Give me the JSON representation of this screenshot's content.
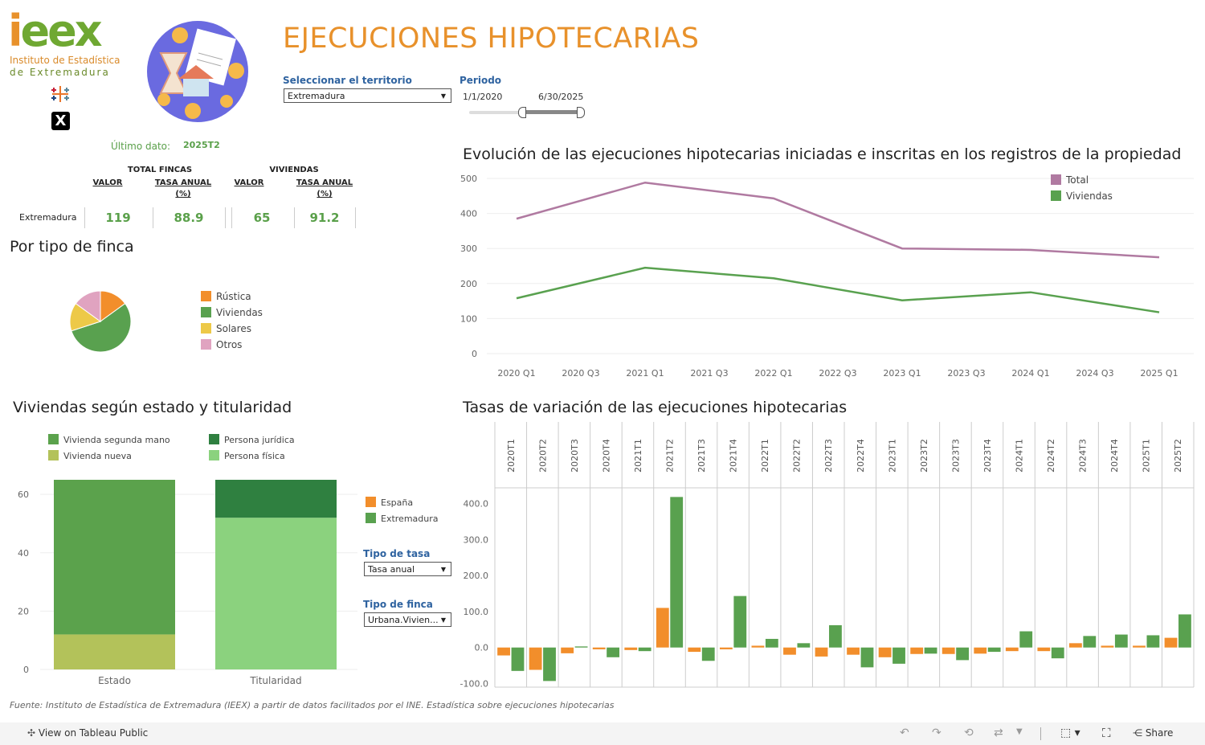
{
  "logo": {
    "word_i": "i",
    "word_rest": "eex",
    "line1": "Instituto de Estadística",
    "line2": "de Extremadura"
  },
  "colors": {
    "orange": "#e8912b",
    "green": "#6fa832",
    "purple": "#b07aa1",
    "line_green": "#59a14f",
    "title_orange": "#e8912b"
  },
  "header": {
    "title": "EJECUCIONES HIPOTECARIAS"
  },
  "filters": {
    "territory_label": "Seleccionar el territorio",
    "territory_value": "Extremadura",
    "period_label": "Periodo",
    "period_start": "1/1/2020",
    "period_end": "6/30/2025",
    "tasa_label": "Tipo de tasa",
    "tasa_value": "Tasa anual",
    "finca_label": "Tipo de finca",
    "finca_value": "Urbana.Vivien..."
  },
  "kpi": {
    "last_label": "Último dato:",
    "last_value": "2025T2",
    "group1": "TOTAL FINCAS",
    "group2": "VIVIENDAS",
    "valor": "VALOR",
    "tasa": "TASA ANUAL",
    "pct": "(%)",
    "row_label": "Extremadura",
    "fincas_valor": "119",
    "fincas_tasa": "88.9",
    "viv_valor": "65",
    "viv_tasa": "91.2"
  },
  "pie": {
    "title": "Por tipo de finca",
    "slices": [
      {
        "label": "Rústica",
        "value": 15,
        "color": "#f28e2b"
      },
      {
        "label": "Viviendas",
        "value": 55,
        "color": "#59a14f"
      },
      {
        "label": "Solares",
        "value": 15,
        "color": "#edc948"
      },
      {
        "label": "Otros",
        "value": 15,
        "color": "#e0a3c0"
      }
    ]
  },
  "line_chart": {
    "title": "Evolución de las ejecuciones hipotecarias iniciadas e inscritas en los registros de la propiedad",
    "yticks": [
      "500",
      "400",
      "300",
      "200",
      "100",
      "0"
    ],
    "xticks": [
      "2020 Q1",
      "2020 Q3",
      "2021 Q1",
      "2021 Q3",
      "2022 Q1",
      "2022 Q3",
      "2023 Q1",
      "2023 Q3",
      "2024 Q1",
      "2024 Q3",
      "2025 Q1"
    ],
    "legend_total": "Total",
    "legend_viv": "Viviendas"
  },
  "stack_chart": {
    "title": "Viviendas según estado y titularidad",
    "legend": [
      {
        "label": "Vivienda segunda mano",
        "color": "#5ba24c"
      },
      {
        "label": "Persona jurídica",
        "color": "#2f8040"
      },
      {
        "label": "Vivienda nueva",
        "color": "#b3c25a"
      },
      {
        "label": "Persona física",
        "color": "#8bd27e"
      }
    ],
    "yticks": [
      "60",
      "40",
      "20",
      "0"
    ],
    "xlabels": [
      "Estado",
      "Titularidad"
    ]
  },
  "bar_chart": {
    "title": "Tasas de variación de las ejecuciones hipotecarias",
    "legend_spain": "España",
    "legend_ext": "Extremadura",
    "yticks": [
      "400.0",
      "300.0",
      "200.0",
      "100.0",
      "0.0",
      "-100.0"
    ]
  },
  "chart_data": [
    {
      "type": "line",
      "title": "Evolución de las ejecuciones hipotecarias iniciadas e inscritas en los registros de la propiedad",
      "x": [
        "2020 Q1",
        "2020 Q3",
        "2021 Q1",
        "2021 Q3",
        "2022 Q1",
        "2022 Q3",
        "2023 Q1",
        "2023 Q3",
        "2024 Q1",
        "2024 Q3",
        "2025 Q1"
      ],
      "ylim": [
        0,
        500
      ],
      "series": [
        {
          "name": "Total",
          "color": "#b07aa1",
          "points": [
            [
              0,
              385
            ],
            [
              2,
              488
            ],
            [
              4,
              443
            ],
            [
              6,
              300
            ],
            [
              8,
              296
            ],
            [
              10,
              275
            ]
          ]
        },
        {
          "name": "Viviendas",
          "color": "#59a14f",
          "points": [
            [
              0,
              158
            ],
            [
              2,
              245
            ],
            [
              4,
              215
            ],
            [
              6,
              152
            ],
            [
              8,
              175
            ],
            [
              10,
              118
            ]
          ]
        }
      ],
      "legend": "top-right",
      "grid": true
    },
    {
      "type": "pie",
      "title": "Por tipo de finca",
      "categories": [
        "Rústica",
        "Viviendas",
        "Solares",
        "Otros"
      ],
      "values": [
        15,
        55,
        15,
        15
      ]
    },
    {
      "type": "bar",
      "title": "Viviendas según estado y titularidad",
      "categories": [
        "Estado",
        "Titularidad"
      ],
      "ylim": [
        0,
        65
      ],
      "series": [
        {
          "name": "Vivienda nueva",
          "values": [
            12,
            0
          ],
          "color": "#b3c25a"
        },
        {
          "name": "Vivienda segunda mano",
          "values": [
            53,
            0
          ],
          "color": "#5ba24c"
        },
        {
          "name": "Persona física",
          "values": [
            0,
            52
          ],
          "color": "#8bd27e"
        },
        {
          "name": "Persona jurídica",
          "values": [
            0,
            13
          ],
          "color": "#2f8040"
        }
      ]
    },
    {
      "type": "bar",
      "title": "Tasas de variación de las ejecuciones hipotecarias",
      "categories": [
        "2020T1",
        "2020T2",
        "2020T3",
        "2020T4",
        "2021T1",
        "2021T2",
        "2021T3",
        "2021T4",
        "2022T1",
        "2022T2",
        "2022T3",
        "2022T4",
        "2023T1",
        "2023T2",
        "2023T3",
        "2023T4",
        "2024T1",
        "2024T2",
        "2024T3",
        "2024T4",
        "2025T1",
        "2025T2"
      ],
      "ylim": [
        -110,
        430
      ],
      "series": [
        {
          "name": "España",
          "color": "#f28e2b",
          "values": [
            -22,
            -62,
            -16,
            -5,
            -7,
            110,
            -12,
            -5,
            5,
            -20,
            -25,
            -20,
            -27,
            -18,
            -18,
            -17,
            -10,
            -10,
            12,
            5,
            5,
            27
          ]
        },
        {
          "name": "Extremadura",
          "color": "#59a14f",
          "values": [
            -65,
            -93,
            3,
            -27,
            -10,
            418,
            -37,
            143,
            24,
            12,
            62,
            -55,
            -45,
            -17,
            -35,
            -12,
            45,
            -30,
            32,
            36,
            34,
            92
          ]
        }
      ]
    }
  ]
}
